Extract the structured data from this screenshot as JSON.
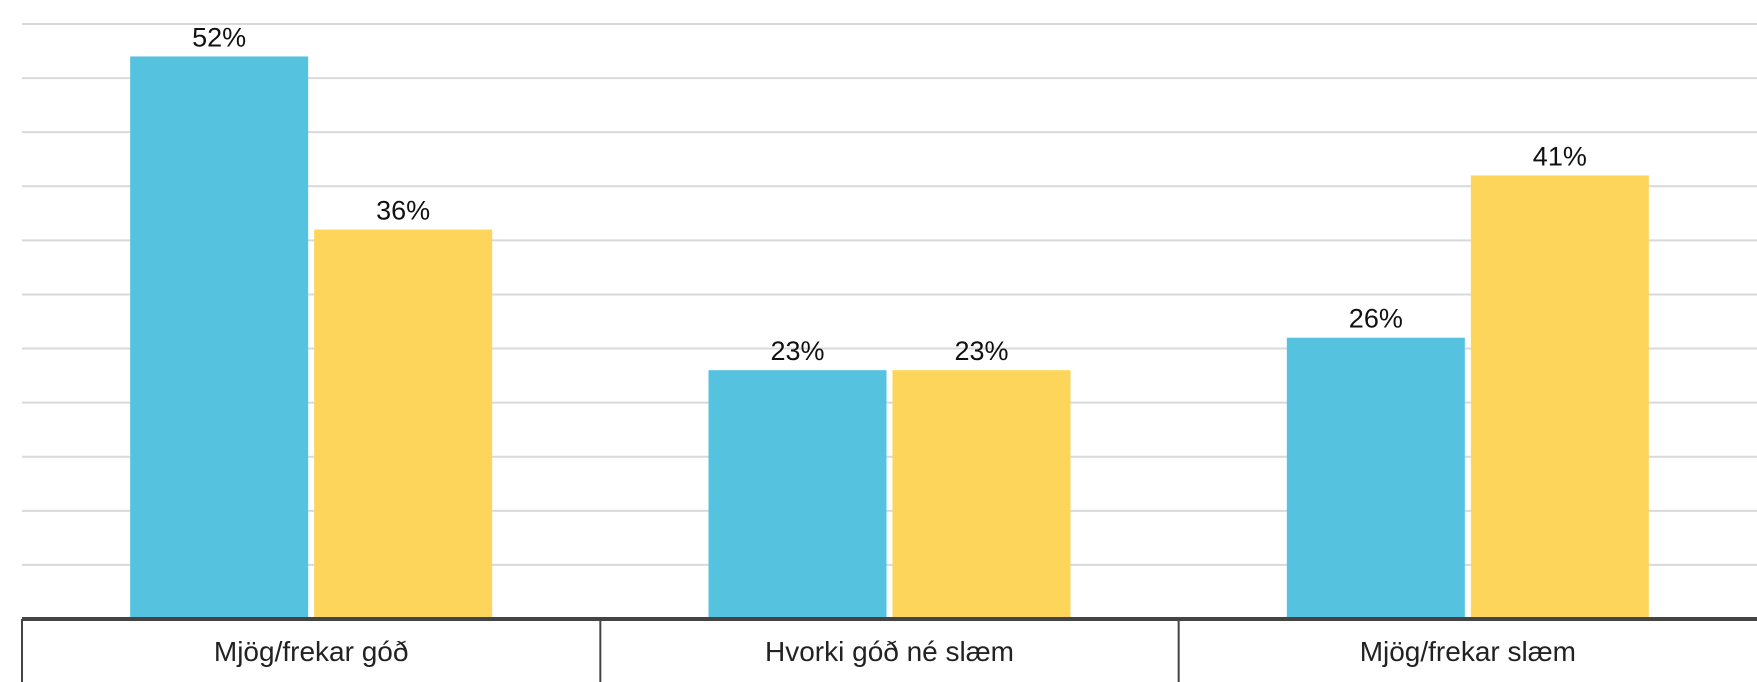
{
  "chart_data": {
    "type": "bar",
    "title": "",
    "xlabel": "",
    "ylabel": "",
    "ylim": [
      0,
      55
    ],
    "grid": true,
    "categories": [
      "Mjög/frekar góð",
      "Hvorki góð né slæm",
      "Mjög/frekar slæm"
    ],
    "series": [
      {
        "values": [
          52,
          23,
          26
        ],
        "value_labels": [
          "52%",
          "23%",
          "26%"
        ],
        "color": "#55c2e0"
      },
      {
        "values": [
          36,
          23,
          41
        ],
        "value_labels": [
          "36%",
          "23%",
          "41%"
        ],
        "color": "#fdd55a"
      }
    ]
  }
}
